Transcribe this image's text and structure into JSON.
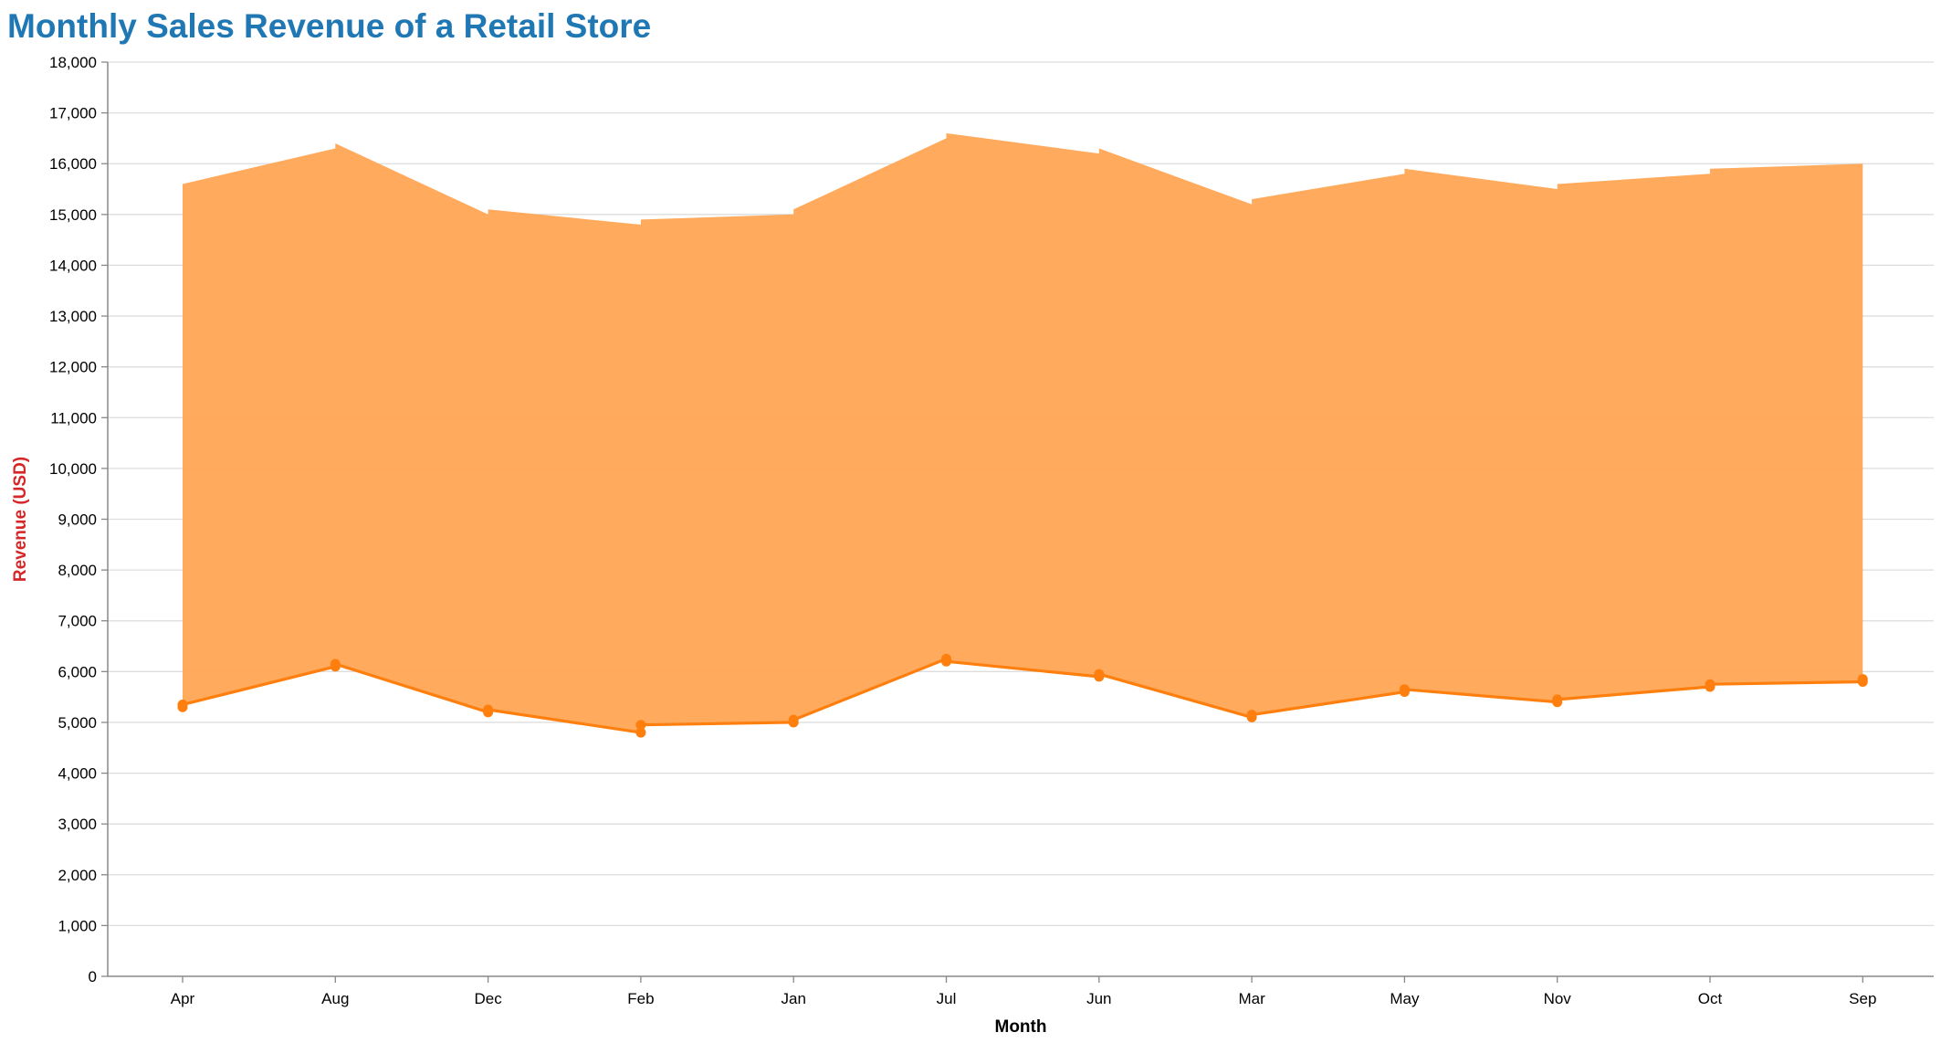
{
  "colors": {
    "title": "#1f77b4",
    "ylabel": "#d62728",
    "series": "#ff7f0e",
    "area_fill": "#ffa553",
    "grid": "#dddddd",
    "axis": "#888888"
  },
  "chart_data": {
    "type": "area",
    "title": "Monthly Sales Revenue of a Retail Store",
    "xlabel": "Month",
    "ylabel": "Revenue (USD)",
    "ylim": [
      0,
      18000
    ],
    "y_ticks": [
      0,
      1000,
      2000,
      3000,
      4000,
      5000,
      6000,
      7000,
      8000,
      9000,
      10000,
      11000,
      12000,
      13000,
      14000,
      15000,
      16000,
      17000,
      18000
    ],
    "y_tick_labels": [
      "0",
      "1,000",
      "2,000",
      "3,000",
      "4,000",
      "5,000",
      "6,000",
      "7,000",
      "8,000",
      "9,000",
      "10,000",
      "11,000",
      "12,000",
      "13,000",
      "14,000",
      "15,000",
      "16,000",
      "17,000",
      "18,000"
    ],
    "grid": true,
    "categories": [
      "Apr",
      "Aug",
      "Dec",
      "Feb",
      "Jan",
      "Jul",
      "Jun",
      "Mar",
      "May",
      "Nov",
      "Oct",
      "Sep"
    ],
    "series": [
      {
        "values_first": [
          5300,
          6100,
          5200,
          4800,
          5000,
          6250,
          5900,
          5100,
          5600,
          5400,
          5700,
          5800
        ],
        "values_second": [
          5350,
          6150,
          5250,
          4950,
          5050,
          6200,
          5950,
          5150,
          5650,
          5450,
          5750,
          5850
        ],
        "upper_first": [
          15600,
          16300,
          15000,
          14800,
          15000,
          16500,
          16200,
          15200,
          15800,
          15500,
          15800,
          16000
        ],
        "upper_second": [
          15600,
          16400,
          15100,
          14900,
          15100,
          16600,
          16300,
          15300,
          15900,
          15600,
          15900,
          16000
        ]
      }
    ]
  }
}
